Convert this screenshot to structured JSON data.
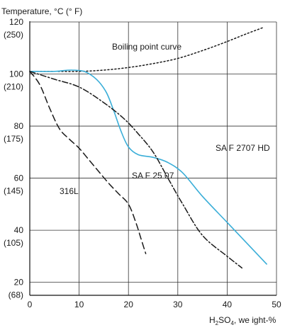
{
  "chart_data": {
    "type": "line",
    "ylabel": "Temperature, °C (° F)",
    "xlabel": "H2SO4, weight-%",
    "xlim": [
      0,
      50
    ],
    "ylim": [
      15,
      120
    ],
    "x_ticks": [
      "0",
      "10",
      "20",
      "30",
      "40",
      "50"
    ],
    "x_tick_values": [
      0,
      10,
      20,
      30,
      40,
      50
    ],
    "y_ticks": [
      {
        "value": 120,
        "c": "120",
        "f": "(250)"
      },
      {
        "value": 100,
        "c": "100",
        "f": "(210)"
      },
      {
        "value": 80,
        "c": "80",
        "f": "(175)"
      },
      {
        "value": 60,
        "c": "60",
        "f": "(145)"
      },
      {
        "value": 40,
        "c": "40",
        "f": "(105)"
      },
      {
        "value": 20,
        "c": "20",
        "f": "(68)"
      }
    ],
    "grid": true,
    "series": [
      {
        "name": "Boiling point curve",
        "style": "dotted",
        "color": "#1a1a1a",
        "points": [
          [
            0,
            101
          ],
          [
            5,
            101
          ],
          [
            10,
            101
          ],
          [
            15,
            101.5
          ],
          [
            20,
            102.5
          ],
          [
            25,
            104
          ],
          [
            30,
            106
          ],
          [
            35,
            109
          ],
          [
            40,
            112.5
          ],
          [
            44,
            115.5
          ],
          [
            47.5,
            118
          ]
        ]
      },
      {
        "name": "SA F 2707  HD",
        "style": "solid",
        "color": "#3aaed8",
        "points": [
          [
            0,
            101
          ],
          [
            5,
            101
          ],
          [
            8,
            101.5
          ],
          [
            11,
            101
          ],
          [
            13.5,
            98
          ],
          [
            15.5,
            93
          ],
          [
            17,
            86
          ],
          [
            18.5,
            78
          ],
          [
            20,
            72
          ],
          [
            22,
            69
          ],
          [
            25,
            68
          ],
          [
            28,
            66
          ],
          [
            31,
            62
          ],
          [
            35,
            53
          ],
          [
            40,
            43
          ],
          [
            45,
            33
          ],
          [
            48,
            27
          ]
        ]
      },
      {
        "name": "SA F 25 07",
        "style": "dashdot",
        "color": "#1a1a1a",
        "points": [
          [
            0,
            101
          ],
          [
            5,
            98
          ],
          [
            10,
            95
          ],
          [
            15,
            89
          ],
          [
            19,
            83
          ],
          [
            22,
            77
          ],
          [
            25,
            70
          ],
          [
            28,
            60
          ],
          [
            31,
            50
          ],
          [
            35,
            38
          ],
          [
            40,
            30
          ],
          [
            43,
            25.5
          ]
        ]
      },
      {
        "name": "316L",
        "style": "dashed",
        "color": "#1a1a1a",
        "points": [
          [
            0,
            101
          ],
          [
            2,
            96
          ],
          [
            4,
            87
          ],
          [
            6,
            79
          ],
          [
            8,
            75
          ],
          [
            10,
            71.5
          ],
          [
            12,
            67
          ],
          [
            14,
            62.5
          ],
          [
            16,
            58
          ],
          [
            18,
            54
          ],
          [
            20,
            50
          ],
          [
            21.5,
            43
          ],
          [
            22.5,
            37
          ],
          [
            23.5,
            31
          ]
        ]
      }
    ]
  }
}
